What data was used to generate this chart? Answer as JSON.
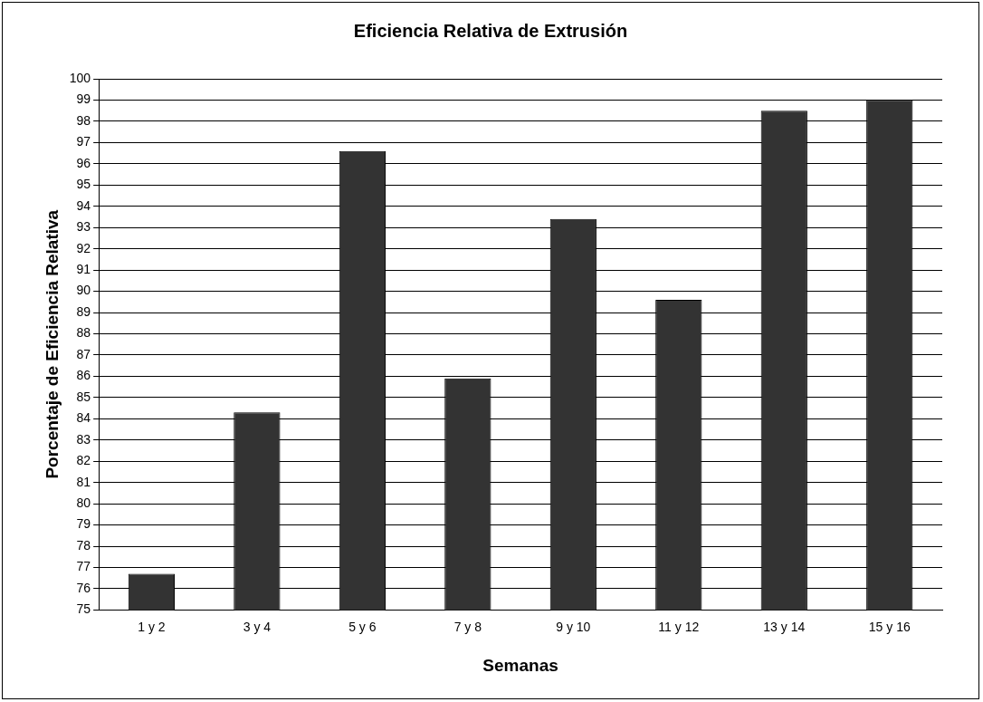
{
  "chart_data": {
    "type": "bar",
    "title": "Eficiencia Relativa de Extrusión",
    "xlabel": "Semanas",
    "ylabel": "Porcentaje de Eficiencia Relativa",
    "categories": [
      "1 y 2",
      "3 y 4",
      "5 y 6",
      "7 y 8",
      "9 y 10",
      "11 y 12",
      "13 y 14",
      "15 y 16"
    ],
    "values": [
      76.7,
      84.3,
      96.6,
      85.9,
      93.4,
      89.6,
      98.5,
      99.0
    ],
    "color": "#333333",
    "ylim": [
      75,
      100
    ],
    "yticks": [
      75,
      76,
      77,
      78,
      79,
      80,
      81,
      82,
      83,
      84,
      85,
      86,
      87,
      88,
      89,
      90,
      91,
      92,
      93,
      94,
      95,
      96,
      97,
      98,
      99,
      100
    ],
    "grid": "y"
  }
}
